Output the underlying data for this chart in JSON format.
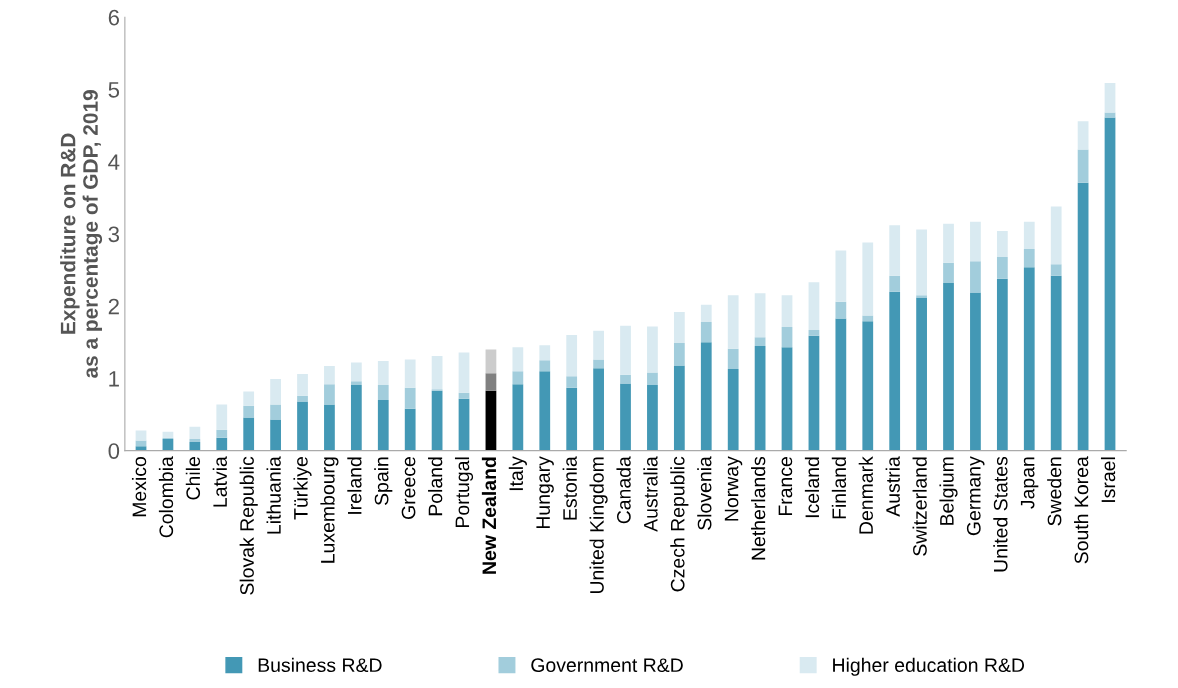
{
  "chart_data": {
    "type": "bar",
    "stacked": true,
    "ylabel": "Expenditure on R&D\nas a percentage of GDP, 2019",
    "categories": [
      "Mexico",
      "Colombia",
      "Chile",
      "Latvia",
      "Slovak Republic",
      "Lithuania",
      "Türkiye",
      "Luxembourg",
      "Ireland",
      "Spain",
      "Greece",
      "Poland",
      "Portugal",
      "New Zealand",
      "Italy",
      "Hungary",
      "Estonia",
      "United Kingdom",
      "Canada",
      "Australia",
      "Czech Republic",
      "Slovenia",
      "Norway",
      "Netherlands",
      "France",
      "Iceland",
      "Finland",
      "Denmark",
      "Austria",
      "Switzerland",
      "Belgium",
      "Germany",
      "United States",
      "Japan",
      "Sweden",
      "South Korea",
      "Israel"
    ],
    "series": [
      {
        "name": "Business R&D",
        "color": "#4398b5",
        "colors": [
          "#4398b5",
          "#4398b5",
          "#4398b5",
          "#4398b5",
          "#4398b5",
          "#4398b5",
          "#4398b5",
          "#4398b5",
          "#4398b5",
          "#4398b5",
          "#4398b5",
          "#4398b5",
          "#4398b5",
          "#000000",
          "#4398b5",
          "#4398b5",
          "#4398b5",
          "#4398b5",
          "#4398b5",
          "#4398b5",
          "#4398b5",
          "#4398b5",
          "#4398b5",
          "#4398b5",
          "#4398b5",
          "#4398b5",
          "#4398b5",
          "#4398b5",
          "#4398b5",
          "#4398b5",
          "#4398b5",
          "#4398b5",
          "#4398b5",
          "#4398b5",
          "#4398b5",
          "#4398b5",
          "#4398b5"
        ],
        "values": [
          0.06,
          0.16,
          0.12,
          0.18,
          0.46,
          0.43,
          0.68,
          0.64,
          0.91,
          0.7,
          0.58,
          0.83,
          0.72,
          0.83,
          0.92,
          1.1,
          0.87,
          1.14,
          0.93,
          0.91,
          1.18,
          1.5,
          1.13,
          1.45,
          1.43,
          1.59,
          1.83,
          1.79,
          2.2,
          2.12,
          2.32,
          2.19,
          2.38,
          2.54,
          2.42,
          3.71,
          4.61
        ]
      },
      {
        "name": "Government R&D",
        "color": "#a2cddc",
        "colors": [
          "#a2cddc",
          "#a2cddc",
          "#a2cddc",
          "#a2cddc",
          "#a2cddc",
          "#a2cddc",
          "#a2cddc",
          "#a2cddc",
          "#a2cddc",
          "#a2cddc",
          "#a2cddc",
          "#a2cddc",
          "#a2cddc",
          "#808080",
          "#a2cddc",
          "#a2cddc",
          "#a2cddc",
          "#a2cddc",
          "#a2cddc",
          "#a2cddc",
          "#a2cddc",
          "#a2cddc",
          "#a2cddc",
          "#a2cddc",
          "#a2cddc",
          "#a2cddc",
          "#a2cddc",
          "#a2cddc",
          "#a2cddc",
          "#a2cddc",
          "#a2cddc",
          "#a2cddc",
          "#a2cddc",
          "#a2cddc",
          "#a2cddc",
          "#a2cddc",
          "#a2cddc"
        ],
        "values": [
          0.08,
          0.02,
          0.04,
          0.11,
          0.16,
          0.21,
          0.08,
          0.28,
          0.05,
          0.21,
          0.29,
          0.02,
          0.08,
          0.24,
          0.18,
          0.15,
          0.16,
          0.12,
          0.12,
          0.17,
          0.31,
          0.28,
          0.28,
          0.12,
          0.28,
          0.08,
          0.23,
          0.08,
          0.22,
          0.03,
          0.28,
          0.43,
          0.3,
          0.25,
          0.16,
          0.46,
          0.07
        ]
      },
      {
        "name": "Higher education R&D",
        "color": "#d9eaf1",
        "colors": [
          "#d9eaf1",
          "#d9eaf1",
          "#d9eaf1",
          "#d9eaf1",
          "#d9eaf1",
          "#d9eaf1",
          "#d9eaf1",
          "#d9eaf1",
          "#d9eaf1",
          "#d9eaf1",
          "#d9eaf1",
          "#d9eaf1",
          "#d9eaf1",
          "#cccccc",
          "#d9eaf1",
          "#d9eaf1",
          "#d9eaf1",
          "#d9eaf1",
          "#d9eaf1",
          "#d9eaf1",
          "#d9eaf1",
          "#d9eaf1",
          "#d9eaf1",
          "#d9eaf1",
          "#d9eaf1",
          "#d9eaf1",
          "#d9eaf1",
          "#d9eaf1",
          "#d9eaf1",
          "#d9eaf1",
          "#d9eaf1",
          "#d9eaf1",
          "#d9eaf1",
          "#d9eaf1",
          "#d9eaf1",
          "#d9eaf1",
          "#d9eaf1"
        ],
        "values": [
          0.14,
          0.08,
          0.17,
          0.35,
          0.2,
          0.35,
          0.3,
          0.25,
          0.26,
          0.33,
          0.39,
          0.46,
          0.56,
          0.33,
          0.33,
          0.21,
          0.57,
          0.4,
          0.68,
          0.64,
          0.43,
          0.24,
          0.74,
          0.61,
          0.44,
          0.66,
          0.71,
          1.01,
          0.7,
          0.91,
          0.54,
          0.55,
          0.36,
          0.38,
          0.8,
          0.39,
          0.41
        ]
      }
    ],
    "ylim": [
      0,
      6
    ],
    "yticks": [
      0,
      1,
      2,
      3,
      4,
      5,
      6
    ],
    "grid": false,
    "legend": "bottom"
  }
}
